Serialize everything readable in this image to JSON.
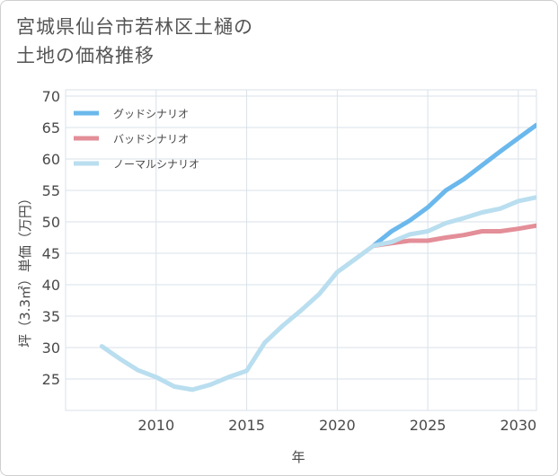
{
  "title": {
    "line1": "宮城県仙台市若林区土樋の",
    "line2": "土地の価格推移"
  },
  "colors": {
    "good": "#6bb8ec",
    "bad": "#e38e98",
    "normal": "#b9deef",
    "grid": "#d9e2ea",
    "axis_text": "#4a4a4a"
  },
  "chart_data": {
    "type": "line",
    "title": "宮城県仙台市若林区土樋の土地の価格推移",
    "xlabel": "年",
    "ylabel": "坪（3.3㎡）単価（万円）",
    "xlim": [
      2005,
      2031
    ],
    "ylim": [
      20,
      71
    ],
    "x_ticks": [
      2010,
      2015,
      2020,
      2025,
      2030
    ],
    "y_ticks": [
      25,
      30,
      35,
      40,
      45,
      50,
      55,
      60,
      65,
      70
    ],
    "grid": true,
    "legend_position": "top-left",
    "series": [
      {
        "name": "グッドシナリオ",
        "key": "good",
        "x": [
          2022,
          2023,
          2024,
          2025,
          2026,
          2027,
          2028,
          2029,
          2030,
          2031
        ],
        "values": [
          46.2,
          48.5,
          50.2,
          52.3,
          55.0,
          56.8,
          59.0,
          61.2,
          63.3,
          65.4
        ]
      },
      {
        "name": "バッドシナリオ",
        "key": "bad",
        "x": [
          2022,
          2023,
          2024,
          2025,
          2026,
          2027,
          2028,
          2029,
          2030,
          2031
        ],
        "values": [
          46.2,
          46.6,
          47.0,
          47.0,
          47.5,
          47.9,
          48.5,
          48.5,
          48.9,
          49.4
        ]
      },
      {
        "name": "ノーマルシナリオ",
        "key": "normal",
        "x": [
          2007,
          2008,
          2009,
          2010,
          2011,
          2012,
          2013,
          2014,
          2015,
          2016,
          2017,
          2018,
          2019,
          2020,
          2021,
          2022,
          2023,
          2024,
          2025,
          2026,
          2027,
          2028,
          2029,
          2030,
          2031
        ],
        "values": [
          30.2,
          28.2,
          26.4,
          25.3,
          23.8,
          23.3,
          24.1,
          25.3,
          26.3,
          30.8,
          33.5,
          35.9,
          38.5,
          42.0,
          44.1,
          46.2,
          46.8,
          48.0,
          48.5,
          49.8,
          50.6,
          51.5,
          52.1,
          53.3,
          53.9
        ]
      }
    ]
  }
}
